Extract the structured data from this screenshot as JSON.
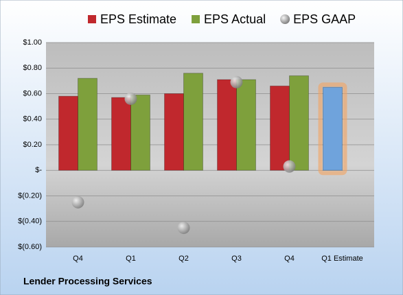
{
  "chart_data": {
    "type": "bar",
    "title": "Lender Processing Services",
    "categories": [
      "Q4",
      "Q1",
      "Q2",
      "Q3",
      "Q4",
      "Q1 Estimate"
    ],
    "series": [
      {
        "name": "EPS Estimate",
        "color": "#c0282d",
        "point_colors": [
          "#c0282d",
          "#c0282d",
          "#c0282d",
          "#c0282d",
          "#c0282d",
          "#6fa3dc"
        ],
        "values": [
          0.58,
          0.57,
          0.6,
          0.71,
          0.66,
          0.65
        ]
      },
      {
        "name": "EPS Actual",
        "color": "#7ea03c",
        "values": [
          0.72,
          0.59,
          0.76,
          0.71,
          0.74,
          null
        ]
      },
      {
        "name": "EPS GAAP",
        "color": "#9a9a9a",
        "marker": "circle",
        "values": [
          -0.25,
          0.56,
          -0.45,
          0.69,
          0.03,
          null
        ]
      }
    ],
    "ylim": [
      -0.6,
      1.0
    ],
    "yticks": [
      {
        "value": -0.6,
        "label": "$(0.60)"
      },
      {
        "value": -0.4,
        "label": "$(0.40)"
      },
      {
        "value": -0.2,
        "label": "$(0.20)"
      },
      {
        "value": 0,
        "label": "$-"
      },
      {
        "value": 0.2,
        "label": "$0.20"
      },
      {
        "value": 0.4,
        "label": "$0.40"
      },
      {
        "value": 0.6,
        "label": "$0.60"
      },
      {
        "value": 0.8,
        "label": "$0.80"
      },
      {
        "value": 1.0,
        "label": "$1.00"
      }
    ],
    "grid": true,
    "legend": "top"
  }
}
